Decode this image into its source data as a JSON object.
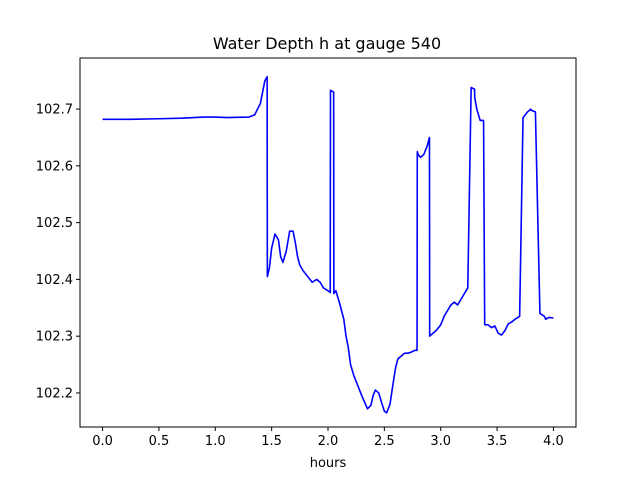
{
  "chart_data": {
    "type": "line",
    "title": "Water Depth h at gauge 540",
    "xlabel": "hours",
    "ylabel": "",
    "xlim": [
      -0.2,
      4.2
    ],
    "ylim": [
      102.14,
      102.79
    ],
    "xticks": [
      0.0,
      0.5,
      1.0,
      1.5,
      2.0,
      2.5,
      3.0,
      3.5,
      4.0
    ],
    "xtick_labels": [
      "0.0",
      "0.5",
      "1.0",
      "1.5",
      "2.0",
      "2.5",
      "3.0",
      "3.5",
      "4.0"
    ],
    "yticks": [
      102.2,
      102.3,
      102.4,
      102.5,
      102.6,
      102.7
    ],
    "ytick_labels": [
      "102.2",
      "102.3",
      "102.4",
      "102.5",
      "102.6",
      "102.7"
    ],
    "grid": false,
    "line_color": "#0000ff",
    "series": [
      {
        "name": "",
        "x": [
          0.0,
          0.25,
          0.5,
          0.7,
          0.9,
          1.0,
          1.1,
          1.3,
          1.35,
          1.4,
          1.44,
          1.46,
          1.462,
          1.48,
          1.5,
          1.53,
          1.56,
          1.58,
          1.6,
          1.63,
          1.66,
          1.69,
          1.71,
          1.73,
          1.75,
          1.78,
          1.82,
          1.86,
          1.9,
          1.93,
          1.96,
          2.0,
          2.02,
          2.022,
          2.05,
          2.052,
          2.07,
          2.1,
          2.14,
          2.16,
          2.18,
          2.2,
          2.23,
          2.26,
          2.3,
          2.35,
          2.38,
          2.4,
          2.42,
          2.45,
          2.48,
          2.5,
          2.52,
          2.55,
          2.58,
          2.6,
          2.62,
          2.65,
          2.68,
          2.71,
          2.74,
          2.77,
          2.79,
          2.792,
          2.8,
          2.82,
          2.85,
          2.88,
          2.9,
          2.902,
          2.93,
          2.96,
          3.0,
          3.03,
          3.06,
          3.09,
          3.12,
          3.15,
          3.18,
          3.21,
          3.24,
          3.27,
          3.3,
          3.302,
          3.32,
          3.35,
          3.38,
          3.39,
          3.392,
          3.42,
          3.45,
          3.48,
          3.51,
          3.54,
          3.57,
          3.6,
          3.63,
          3.66,
          3.7,
          3.73,
          3.77,
          3.8,
          3.802,
          3.84,
          3.88,
          3.92,
          3.93,
          3.932,
          3.96,
          4.0
        ],
        "y": [
          102.682,
          102.682,
          102.683,
          102.684,
          102.686,
          102.686,
          102.685,
          102.686,
          102.69,
          102.71,
          102.75,
          102.757,
          102.405,
          102.42,
          102.455,
          102.48,
          102.47,
          102.44,
          102.43,
          102.45,
          102.485,
          102.485,
          102.465,
          102.44,
          102.425,
          102.415,
          102.405,
          102.395,
          102.4,
          102.395,
          102.385,
          102.38,
          102.377,
          102.733,
          102.73,
          102.375,
          102.38,
          102.36,
          102.33,
          102.3,
          102.28,
          102.25,
          102.23,
          102.215,
          102.195,
          102.172,
          102.178,
          102.195,
          102.205,
          102.2,
          102.18,
          102.168,
          102.165,
          102.18,
          102.22,
          102.245,
          102.26,
          102.265,
          102.27,
          102.27,
          102.272,
          102.275,
          102.275,
          102.625,
          102.62,
          102.615,
          102.62,
          102.635,
          102.65,
          102.3,
          102.305,
          102.31,
          102.32,
          102.335,
          102.345,
          102.355,
          102.36,
          102.355,
          102.365,
          102.375,
          102.385,
          102.738,
          102.735,
          102.72,
          102.7,
          102.68,
          102.68,
          102.322,
          102.32,
          102.32,
          102.315,
          102.318,
          102.305,
          102.302,
          102.31,
          102.322,
          102.325,
          102.33,
          102.335,
          102.685,
          102.695,
          102.7,
          102.698,
          102.695,
          102.34,
          102.335,
          102.33,
          102.33,
          102.333,
          102.332
        ]
      }
    ]
  }
}
